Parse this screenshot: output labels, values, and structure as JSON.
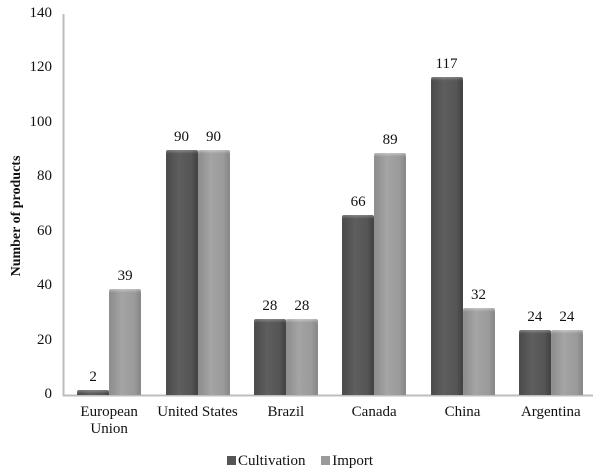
{
  "chart_data": {
    "type": "bar",
    "title": "",
    "xlabel": "",
    "ylabel": "Number of products",
    "ylim": [
      0,
      140
    ],
    "yticks": [
      0,
      20,
      40,
      60,
      80,
      100,
      120,
      140
    ],
    "grid": false,
    "legend_position": "bottom",
    "categories": [
      "European Union",
      "United States",
      "Brazil",
      "Canada",
      "China",
      "Argentina"
    ],
    "category_lines": [
      [
        "European",
        "Union"
      ],
      [
        "United States"
      ],
      [
        "Brazil"
      ],
      [
        "Canada"
      ],
      [
        "China"
      ],
      [
        "Argentina"
      ]
    ],
    "series": [
      {
        "name": "Cultivation",
        "color": "#555555",
        "values": [
          2,
          90,
          28,
          66,
          117,
          24
        ]
      },
      {
        "name": "Import",
        "color": "#9a9a9a",
        "values": [
          39,
          90,
          28,
          89,
          32,
          24
        ]
      }
    ]
  }
}
